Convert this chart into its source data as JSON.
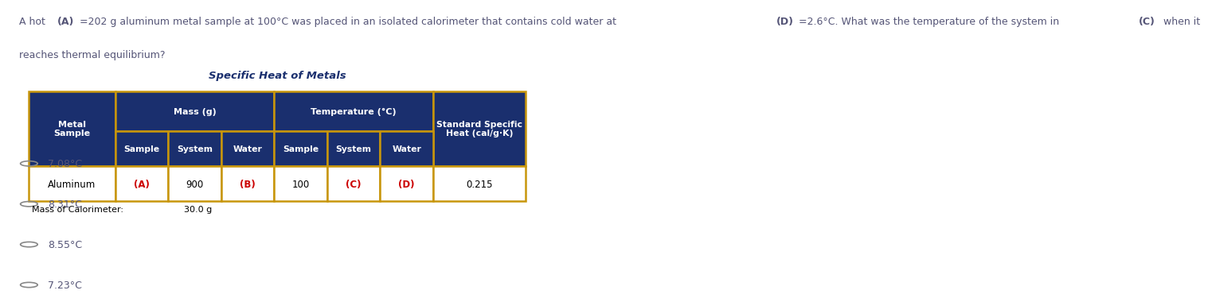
{
  "question_line1": "A hot (A)=202 g aluminum metal sample at 100°C was placed in an isolated calorimeter that contains cold water at (D)=2.6°C. What was the temperature of the system in (C) when it",
  "question_line2": "reaches thermal equilibrium?",
  "table_title": "Specific Heat of Metals",
  "header_bg": "#1a2f6e",
  "header_text_color": "#ffffff",
  "border_color": "#c8960c",
  "data_row_bg": "#ffffff",
  "data_row_text_color": "#000000",
  "highlight_color": "#cc0000",
  "data_row": [
    "Aluminum",
    "(A)",
    "900",
    "(B)",
    "100",
    "(C)",
    "(D)",
    "0.215"
  ],
  "highlighted_cells": [
    1,
    3,
    5,
    6
  ],
  "mass_cal_label": "Mass of Calorimeter:",
  "mass_cal_value": "30.0 g",
  "options": [
    "7.08°C",
    "8.31°C",
    "8.55°C",
    "7.23°C"
  ],
  "option_text_color": "#555577",
  "question_text_color": "#555577",
  "table_title_color": "#1a2f6e",
  "bg_color": "#ffffff",
  "col_rel_widths": [
    1.3,
    0.8,
    0.8,
    0.8,
    0.8,
    0.8,
    0.8,
    1.4
  ]
}
